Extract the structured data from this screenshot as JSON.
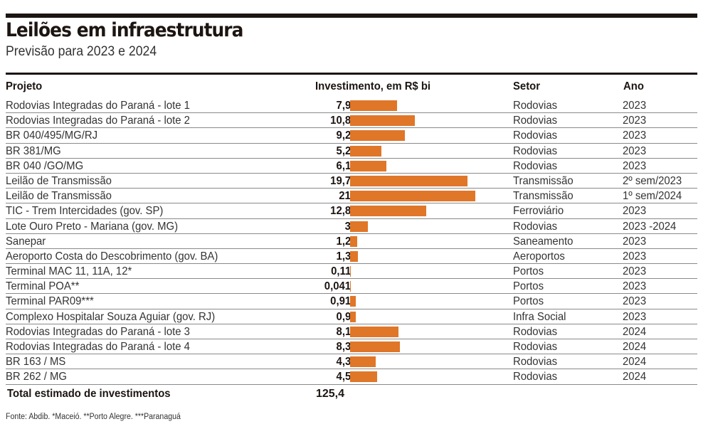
{
  "header": {
    "title": "Leilões em infraestrutura",
    "subtitle": "Previsão para 2023 e 2024"
  },
  "columns": {
    "project": "Projeto",
    "investment": "Investimento, em R$ bi",
    "sector": "Setor",
    "year": "Ano"
  },
  "total": {
    "label": "Total estimado de investimentos",
    "value": "125,4"
  },
  "source": "Fonte: Abdib. *Maceió. **Porto Alegre. ***Paranaguá",
  "colors": {
    "bar": "#e07628",
    "rule": "#1c1512"
  },
  "chart_data": {
    "type": "bar",
    "orientation": "horizontal",
    "title": "Leilões em infraestrutura",
    "subtitle": "Previsão para 2023 e 2024",
    "xlabel": "Investimento, em R$ bi",
    "ylabel": "Projeto",
    "xlim": [
      0,
      21
    ],
    "grid": false,
    "rows": [
      {
        "project": "Rodovias Integradas do Paraná - lote 1",
        "value": 7.9,
        "label": "7,9",
        "sector": "Rodovias",
        "year": "2023"
      },
      {
        "project": "Rodovias Integradas do Paraná - lote 2",
        "value": 10.8,
        "label": "10,8",
        "sector": "Rodovias",
        "year": "2023"
      },
      {
        "project": "BR 040/495/MG/RJ",
        "value": 9.2,
        "label": "9,2",
        "sector": "Rodovias",
        "year": "2023"
      },
      {
        "project": "BR 381/MG",
        "value": 5.2,
        "label": "5,2",
        "sector": "Rodovias",
        "year": "2023"
      },
      {
        "project": "BR 040 /GO/MG",
        "value": 6.1,
        "label": "6,1",
        "sector": "Rodovias",
        "year": "2023"
      },
      {
        "project": "Leilão de Transmissão",
        "value": 19.7,
        "label": "19,7",
        "sector": "Transmissão",
        "year": "2º sem/2023"
      },
      {
        "project": "Leilão de Transmissão",
        "value": 21,
        "label": "21",
        "sector": "Transmissão",
        "year": "1º sem/2024"
      },
      {
        "project": "TIC - Trem Intercidades (gov. SP)",
        "value": 12.8,
        "label": "12,8",
        "sector": "Ferroviário",
        "year": "2023"
      },
      {
        "project": "Lote Ouro Preto - Mariana (gov. MG)",
        "value": 3,
        "label": "3",
        "sector": "Rodovias",
        "year": "2023 -2024"
      },
      {
        "project": "Sanepar",
        "value": 1.2,
        "label": "1,2",
        "sector": "Saneamento",
        "year": "2023"
      },
      {
        "project": "Aeroporto Costa do Descobrimento (gov. BA)",
        "value": 1.3,
        "label": "1,3",
        "sector": "Aeroportos",
        "year": "2023"
      },
      {
        "project": "Terminal MAC 11, 11A, 12*",
        "value": 0.11,
        "label": "0,11",
        "sector": "Portos",
        "year": "2023"
      },
      {
        "project": "Terminal POA**",
        "value": 0.041,
        "label": "0,041",
        "sector": "Portos",
        "year": "2023"
      },
      {
        "project": "Terminal PAR09***",
        "value": 0.91,
        "label": "0,91",
        "sector": "Portos",
        "year": "2023"
      },
      {
        "project": "Complexo Hospitalar Souza Aguiar (gov. RJ)",
        "value": 0.9,
        "label": "0,9",
        "sector": "Infra Social",
        "year": "2023"
      },
      {
        "project": "Rodovias Integradas do Paraná - lote 3",
        "value": 8.1,
        "label": "8,1",
        "sector": "Rodovias",
        "year": "2024"
      },
      {
        "project": "Rodovias Integradas do Paraná - lote 4",
        "value": 8.3,
        "label": "8,3",
        "sector": "Rodovias",
        "year": "2024"
      },
      {
        "project": "BR 163 / MS",
        "value": 4.3,
        "label": "4,3",
        "sector": "Rodovias",
        "year": "2024"
      },
      {
        "project": "BR 262 / MG",
        "value": 4.5,
        "label": "4,5",
        "sector": "Rodovias",
        "year": "2024"
      }
    ]
  }
}
